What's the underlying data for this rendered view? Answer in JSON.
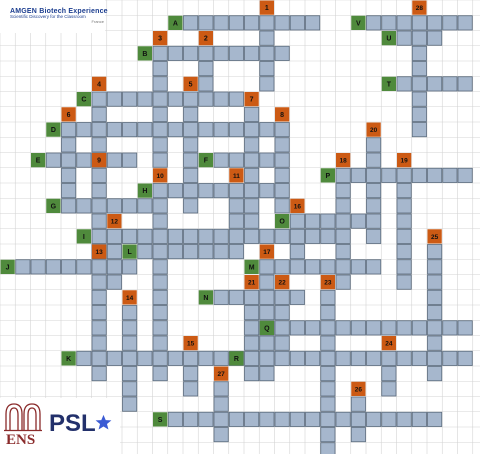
{
  "header": {
    "brand": "AMGEN Biotech Experience",
    "tagline": "Scientific Discovery for the Classroom",
    "region": "France"
  },
  "footer": {
    "ens_label": "ENS",
    "psl_label": "PSL"
  },
  "colors": {
    "cell": "#a6b7cd",
    "cell_border": "#5b6b7d",
    "number_marker": "#cc5a14",
    "letter_marker": "#4f8a3c",
    "grid_line": "#d4d4d4",
    "psl_star": "#3b5bd4"
  },
  "crossword": {
    "grid_size": {
      "cols": 32,
      "rows": 30
    },
    "number_clues": [
      {
        "label": "1",
        "direction": "down",
        "length": 5
      },
      {
        "label": "2",
        "direction": "down",
        "length": 4
      },
      {
        "label": "3",
        "direction": "down",
        "length": 8
      },
      {
        "label": "4",
        "direction": "down",
        "length": 6
      },
      {
        "label": "5",
        "direction": "down",
        "length": 8
      },
      {
        "label": "6",
        "direction": "down",
        "length": 6
      },
      {
        "label": "7",
        "direction": "down",
        "length": 8
      },
      {
        "label": "8",
        "direction": "down",
        "length": 6
      },
      {
        "label": "9",
        "direction": "down",
        "length": 6
      },
      {
        "label": "10",
        "direction": "down",
        "length": 13
      },
      {
        "label": "11",
        "direction": "down",
        "length": 5
      },
      {
        "label": "12",
        "direction": "down",
        "length": 4
      },
      {
        "label": "13",
        "direction": "down",
        "length": 8
      },
      {
        "label": "14",
        "direction": "down",
        "length": 7
      },
      {
        "label": "15",
        "direction": "down",
        "length": 3
      },
      {
        "label": "16",
        "direction": "down",
        "length": 4
      },
      {
        "label": "17",
        "direction": "down",
        "length": 8
      },
      {
        "label": "18",
        "direction": "down",
        "length": 8
      },
      {
        "label": "19",
        "direction": "down",
        "length": 8
      },
      {
        "label": "20",
        "direction": "down",
        "length": 7
      },
      {
        "label": "21",
        "direction": "down",
        "length": 6
      },
      {
        "label": "22",
        "direction": "down",
        "length": 4
      },
      {
        "label": "23",
        "direction": "down",
        "length": 11
      },
      {
        "label": "24",
        "direction": "down",
        "length": 3
      },
      {
        "label": "25",
        "direction": "down",
        "length": 9
      },
      {
        "label": "26",
        "direction": "down",
        "length": 3
      },
      {
        "label": "27",
        "direction": "down",
        "length": 4
      },
      {
        "label": "28",
        "direction": "down",
        "length": 8
      }
    ],
    "letter_clues": [
      {
        "label": "A",
        "direction": "across",
        "length": 9
      },
      {
        "label": "B",
        "direction": "across",
        "length": 9
      },
      {
        "label": "C",
        "direction": "across",
        "length": 10
      },
      {
        "label": "D",
        "direction": "across",
        "length": 15
      },
      {
        "label": "E",
        "direction": "across",
        "length": 6
      },
      {
        "label": "F",
        "direction": "across",
        "length": 5
      },
      {
        "label": "G",
        "direction": "across",
        "length": 7
      },
      {
        "label": "H",
        "direction": "across",
        "length": 8
      },
      {
        "label": "I",
        "direction": "across",
        "length": 16
      },
      {
        "label": "J",
        "direction": "across",
        "length": 8
      },
      {
        "label": "K",
        "direction": "across",
        "length": 11
      },
      {
        "label": "L",
        "direction": "across",
        "length": 7
      },
      {
        "label": "M",
        "direction": "across",
        "length": 8
      },
      {
        "label": "N",
        "direction": "across",
        "length": 6
      },
      {
        "label": "O",
        "direction": "across",
        "length": 6
      },
      {
        "label": "P",
        "direction": "across",
        "length": 9
      },
      {
        "label": "Q",
        "direction": "across",
        "length": 13
      },
      {
        "label": "R",
        "direction": "across",
        "length": 15
      },
      {
        "label": "S",
        "direction": "across",
        "length": 18
      },
      {
        "label": "T",
        "direction": "across",
        "length": 5
      },
      {
        "label": "U",
        "direction": "across",
        "length": 3
      },
      {
        "label": "V",
        "direction": "across",
        "length": 7
      }
    ]
  }
}
